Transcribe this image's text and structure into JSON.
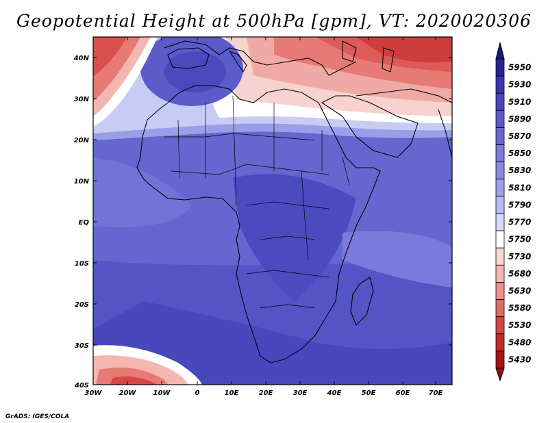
{
  "title": "Geopotential Height at 500hPa [gpm], VT: 2020020306",
  "credit": "GrADS: IGES/COLA",
  "lat_labels": [
    "40N",
    "30N",
    "20N",
    "10N",
    "EQ",
    "10S",
    "20S",
    "30S",
    "40S"
  ],
  "lon_labels": [
    "30W",
    "20W",
    "10W",
    "0",
    "10E",
    "20E",
    "30E",
    "40E",
    "50E",
    "60E",
    "70E"
  ],
  "colorbar": {
    "labels": [
      "5950",
      "5930",
      "5910",
      "5890",
      "5870",
      "5850",
      "5830",
      "5810",
      "5790",
      "5770",
      "5750",
      "5730",
      "5680",
      "5630",
      "5580",
      "5530",
      "5480",
      "5430"
    ],
    "colors": [
      "#2a229a",
      "#3a35b2",
      "#4b47c2",
      "#5b58cc",
      "#6a69d4",
      "#7a7bdc",
      "#8a8ce2",
      "#9ea1ea",
      "#b8bcf2",
      "#d6d9f9",
      "#ffffff",
      "#f8d8d4",
      "#f3b6b0",
      "#ec908a",
      "#e26b66",
      "#d64646",
      "#c42a2a",
      "#a81414"
    ],
    "top_arrow_color": "#1e1780",
    "bottom_arrow_color": "#901010"
  }
}
